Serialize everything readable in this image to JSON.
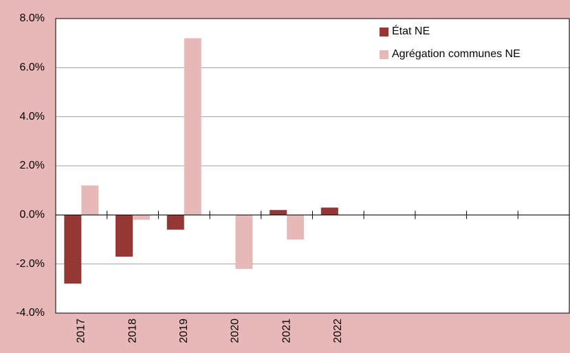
{
  "chart_data": {
    "type": "bar",
    "categories": [
      "2017",
      "2018",
      "2019",
      "2020",
      "2021",
      "2022",
      null,
      null,
      null,
      null
    ],
    "series": [
      {
        "name": "État NE",
        "color": "#953735",
        "values": [
          -2.8,
          -1.7,
          -0.6,
          null,
          0.2,
          0.3,
          null,
          null,
          null,
          null
        ]
      },
      {
        "name": "Agrégation communes NE",
        "color": "#e6b9b8",
        "values": [
          1.2,
          -0.2,
          7.2,
          -2.2,
          -1.0,
          null,
          null,
          null,
          null,
          null
        ]
      }
    ],
    "ylim": [
      -4,
      8
    ],
    "yticks": [
      {
        "value": -4,
        "label": "-4.0%"
      },
      {
        "value": -2,
        "label": "-2.0%"
      },
      {
        "value": 0,
        "label": "0.0%"
      },
      {
        "value": 2,
        "label": "2.0%"
      },
      {
        "value": 4,
        "label": "4.0%"
      },
      {
        "value": 6,
        "label": "6.0%"
      },
      {
        "value": 8,
        "label": "8.0%"
      }
    ],
    "grid": true,
    "legend": "top-right",
    "background": "#e8b8b8"
  }
}
